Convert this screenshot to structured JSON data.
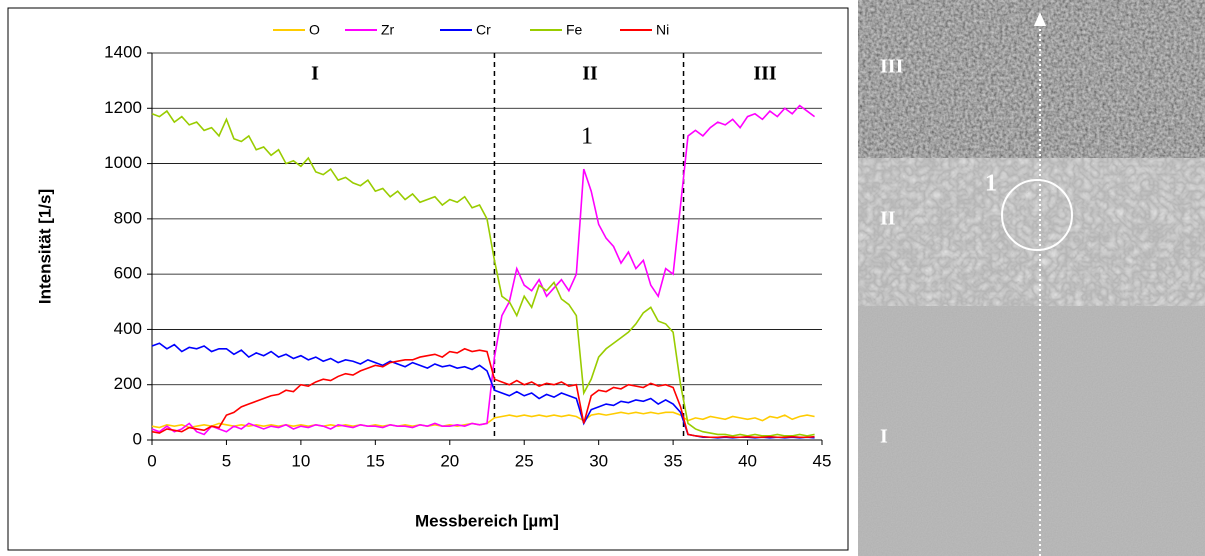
{
  "chart_data": {
    "type": "line",
    "x_label": "Messbereich [µm]",
    "y_label": "Intensität [1/s]",
    "xlim": [
      0,
      45
    ],
    "xticks": [
      0,
      5,
      10,
      15,
      20,
      25,
      30,
      35,
      40,
      45
    ],
    "ylim": [
      0,
      1400
    ],
    "yticks": [
      0,
      200,
      400,
      600,
      800,
      1000,
      1200,
      1400
    ],
    "grid": true,
    "legend": "top",
    "region_boundaries": [
      23,
      35.7
    ],
    "annotations": [
      "I",
      "II",
      "III",
      "1"
    ],
    "x": [
      0,
      0.5,
      1,
      1.5,
      2,
      2.5,
      3,
      3.5,
      4,
      4.5,
      5,
      5.5,
      6,
      6.5,
      7,
      7.5,
      8,
      8.5,
      9,
      9.5,
      10,
      10.5,
      11,
      11.5,
      12,
      12.5,
      13,
      13.5,
      14,
      14.5,
      15,
      15.5,
      16,
      16.5,
      17,
      17.5,
      18,
      18.5,
      19,
      19.5,
      20,
      20.5,
      21,
      21.5,
      22,
      22.5,
      23,
      23.5,
      24,
      24.5,
      25,
      25.5,
      26,
      26.5,
      27,
      27.5,
      28,
      28.5,
      29,
      29.5,
      30,
      30.5,
      31,
      31.5,
      32,
      32.5,
      33,
      33.5,
      34,
      34.5,
      35,
      35.5,
      36,
      36.5,
      37,
      37.5,
      38,
      38.5,
      39,
      39.5,
      40,
      40.5,
      41,
      41.5,
      42,
      42.5,
      43,
      43.5,
      44,
      44.5
    ],
    "series": [
      {
        "name": "O",
        "color": "#ffcc00",
        "values": [
          50,
          45,
          55,
          50,
          55,
          45,
          50,
          55,
          50,
          60,
          55,
          50,
          55,
          50,
          55,
          50,
          55,
          50,
          55,
          50,
          55,
          50,
          55,
          50,
          55,
          50,
          55,
          50,
          55,
          50,
          55,
          50,
          55,
          50,
          55,
          50,
          55,
          50,
          55,
          50,
          55,
          50,
          55,
          60,
          55,
          60,
          80,
          85,
          90,
          85,
          90,
          85,
          90,
          85,
          90,
          85,
          90,
          85,
          70,
          90,
          95,
          90,
          95,
          100,
          95,
          100,
          95,
          100,
          95,
          100,
          100,
          90,
          70,
          80,
          75,
          85,
          80,
          75,
          85,
          80,
          75,
          80,
          70,
          85,
          80,
          90,
          75,
          85,
          90,
          85
        ]
      },
      {
        "name": "Zr",
        "color": "#ff00ff",
        "values": [
          40,
          30,
          50,
          30,
          40,
          60,
          30,
          20,
          50,
          40,
          30,
          50,
          40,
          60,
          50,
          40,
          50,
          45,
          55,
          40,
          50,
          45,
          55,
          50,
          40,
          55,
          50,
          45,
          55,
          50,
          50,
          45,
          55,
          50,
          50,
          45,
          55,
          50,
          60,
          50,
          50,
          55,
          50,
          60,
          55,
          60,
          300,
          450,
          500,
          620,
          560,
          540,
          580,
          520,
          550,
          580,
          540,
          600,
          980,
          900,
          780,
          730,
          700,
          640,
          680,
          620,
          650,
          560,
          520,
          620,
          600,
          850,
          1100,
          1120,
          1100,
          1130,
          1150,
          1140,
          1160,
          1130,
          1170,
          1180,
          1160,
          1190,
          1170,
          1200,
          1180,
          1210,
          1190,
          1170
        ]
      },
      {
        "name": "Cr",
        "color": "#0000ff",
        "values": [
          340,
          350,
          330,
          345,
          320,
          335,
          330,
          340,
          320,
          330,
          330,
          310,
          325,
          300,
          315,
          305,
          320,
          300,
          310,
          295,
          305,
          290,
          300,
          285,
          295,
          280,
          290,
          285,
          275,
          290,
          280,
          270,
          285,
          275,
          265,
          280,
          270,
          260,
          275,
          265,
          270,
          260,
          265,
          255,
          270,
          250,
          180,
          170,
          160,
          175,
          160,
          170,
          150,
          165,
          155,
          170,
          160,
          150,
          60,
          110,
          120,
          130,
          125,
          140,
          135,
          145,
          140,
          150,
          130,
          145,
          130,
          100,
          20,
          15,
          10,
          10,
          8,
          10,
          8,
          10,
          10,
          8,
          10,
          8,
          10,
          8,
          10,
          8,
          10,
          8
        ]
      },
      {
        "name": "Fe",
        "color": "#99cc00",
        "values": [
          1180,
          1170,
          1190,
          1150,
          1170,
          1140,
          1150,
          1120,
          1130,
          1100,
          1160,
          1090,
          1080,
          1100,
          1050,
          1060,
          1030,
          1050,
          1000,
          1010,
          990,
          1020,
          970,
          960,
          980,
          940,
          950,
          930,
          920,
          940,
          900,
          910,
          880,
          900,
          870,
          890,
          860,
          870,
          880,
          850,
          870,
          860,
          880,
          840,
          850,
          800,
          650,
          520,
          500,
          450,
          520,
          480,
          560,
          540,
          570,
          510,
          490,
          450,
          170,
          220,
          300,
          330,
          350,
          370,
          390,
          420,
          460,
          480,
          430,
          420,
          390,
          200,
          60,
          40,
          30,
          25,
          20,
          20,
          15,
          20,
          15,
          20,
          15,
          15,
          20,
          15,
          15,
          20,
          15,
          20
        ]
      },
      {
        "name": "Ni",
        "color": "#ff0000",
        "values": [
          30,
          25,
          40,
          35,
          30,
          45,
          40,
          35,
          50,
          45,
          90,
          100,
          120,
          130,
          140,
          150,
          160,
          165,
          180,
          175,
          200,
          195,
          210,
          220,
          215,
          230,
          240,
          235,
          250,
          260,
          270,
          265,
          280,
          285,
          290,
          290,
          300,
          305,
          310,
          300,
          320,
          315,
          330,
          320,
          325,
          320,
          220,
          210,
          200,
          215,
          200,
          210,
          195,
          205,
          200,
          210,
          195,
          200,
          60,
          160,
          180,
          175,
          190,
          185,
          200,
          195,
          190,
          205,
          195,
          200,
          190,
          120,
          20,
          15,
          12,
          10,
          10,
          12,
          10,
          10,
          12,
          10,
          10,
          12,
          10,
          10,
          12,
          10,
          10,
          12
        ]
      }
    ]
  },
  "image": {
    "labels": [
      "III",
      "II",
      "I",
      "1"
    ]
  }
}
